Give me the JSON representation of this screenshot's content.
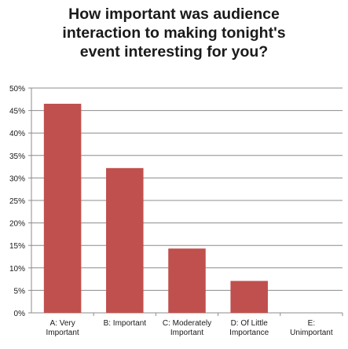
{
  "chart_data": {
    "type": "bar",
    "title_lines": [
      "How important was audience",
      "interaction to making tonight's",
      "event interesting for you?"
    ],
    "categories": [
      [
        "A: Very",
        "Important"
      ],
      [
        "B: Important"
      ],
      [
        "C: Moderately",
        "Important"
      ],
      [
        "D: Of Little",
        "Importance"
      ],
      [
        "E:",
        "Unimportant"
      ]
    ],
    "values": [
      46.5,
      32.2,
      14.3,
      7.1,
      0
    ],
    "ylim": [
      0,
      50
    ],
    "yticks": [
      0,
      5,
      10,
      15,
      20,
      25,
      30,
      35,
      40,
      45,
      50
    ],
    "ytick_suffix": "%",
    "xlabel": "",
    "ylabel": "",
    "grid": true,
    "legend": false,
    "bar_color": "#c0504d",
    "grid_color": "#8c8c8c"
  }
}
